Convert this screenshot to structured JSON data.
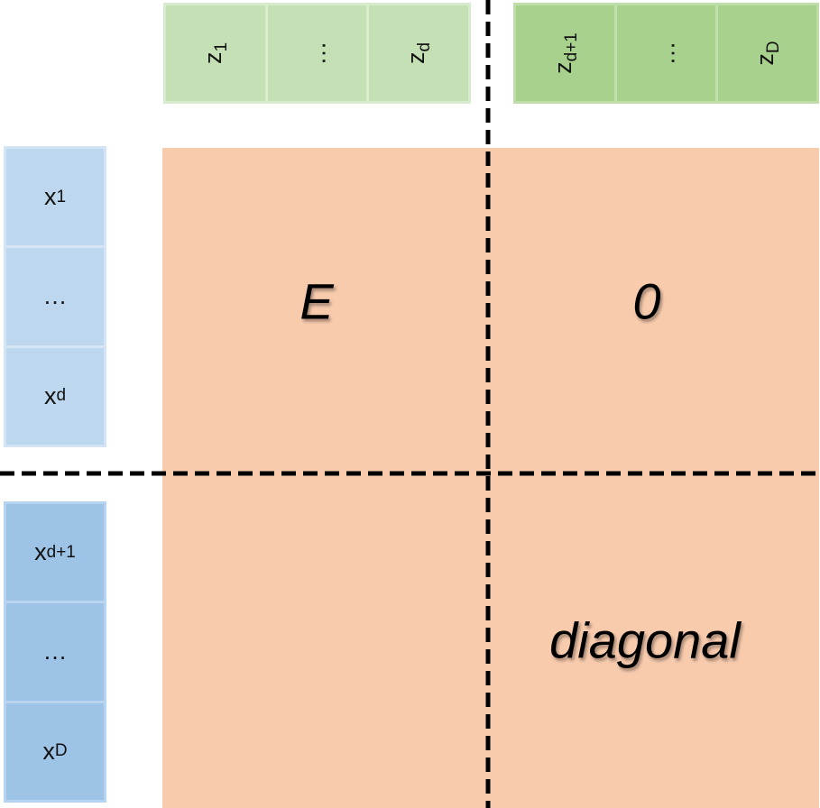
{
  "z_vector_first": {
    "cells": [
      {
        "base": "z",
        "sub": "1"
      },
      {
        "base": "…",
        "sub": ""
      },
      {
        "base": "z",
        "sub": "d"
      }
    ]
  },
  "z_vector_second": {
    "cells": [
      {
        "base": "z",
        "sub": "d+1"
      },
      {
        "base": "…",
        "sub": ""
      },
      {
        "base": "z",
        "sub": "D"
      }
    ]
  },
  "x_vector_first": {
    "cells": [
      {
        "base": "x",
        "sub": "1"
      },
      {
        "base": "…",
        "sub": ""
      },
      {
        "base": "x",
        "sub": "d"
      }
    ]
  },
  "x_vector_second": {
    "cells": [
      {
        "base": "x",
        "sub": "d+1"
      },
      {
        "base": "…",
        "sub": ""
      },
      {
        "base": "x",
        "sub": "D"
      }
    ]
  },
  "matrix": {
    "top_left": "E",
    "top_right": "0",
    "bottom_left": "",
    "bottom_right": "diagonal"
  },
  "colors": {
    "matrix_fill": "#f8cbad",
    "z_light": "#c5e0b4",
    "z_dark": "#a9d18e",
    "x_light": "#bdd7ee",
    "x_dark": "#9dc3e6",
    "divider": "#000000"
  }
}
